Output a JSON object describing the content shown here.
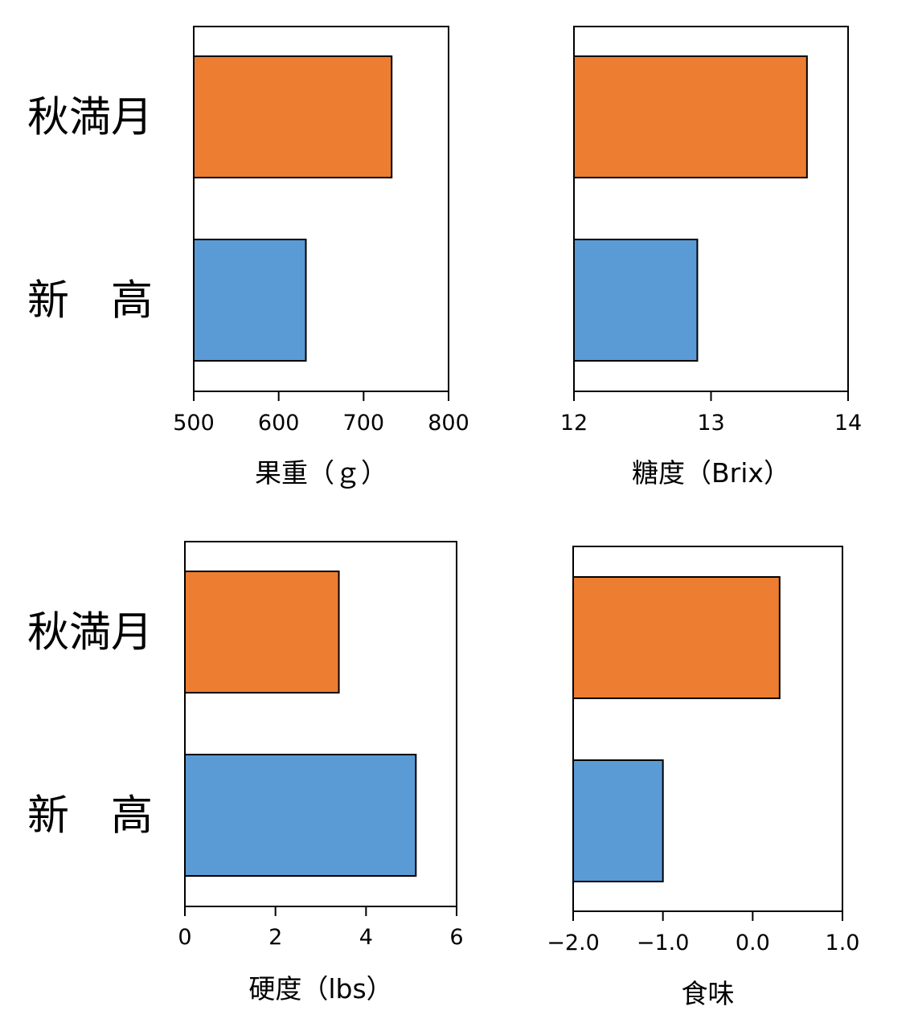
{
  "chart_data": [
    {
      "type": "bar",
      "orientation": "horizontal",
      "categories": [
        "秋満月",
        "新　高"
      ],
      "values": [
        733,
        632
      ],
      "xlabel": "果重（ｇ）",
      "xlim": [
        500,
        800
      ],
      "ticks": [
        500,
        600,
        700,
        800
      ],
      "tick_labels": [
        "500",
        "600",
        "700",
        "800"
      ]
    },
    {
      "type": "bar",
      "orientation": "horizontal",
      "categories": [
        "秋満月",
        "新　高"
      ],
      "values": [
        13.7,
        12.9
      ],
      "xlabel": "糖度（Brix）",
      "xlim": [
        12,
        14
      ],
      "ticks": [
        12,
        13,
        14
      ],
      "tick_labels": [
        "12",
        "13",
        "14"
      ]
    },
    {
      "type": "bar",
      "orientation": "horizontal",
      "categories": [
        "秋満月",
        "新　高"
      ],
      "values": [
        3.4,
        5.1
      ],
      "xlabel": "硬度（lbs）",
      "xlim": [
        0,
        6
      ],
      "ticks": [
        0,
        2,
        4,
        6
      ],
      "tick_labels": [
        "0",
        "2",
        "4",
        "6"
      ]
    },
    {
      "type": "bar",
      "orientation": "horizontal",
      "categories": [
        "秋満月",
        "新　高"
      ],
      "values": [
        0.3,
        -1.0
      ],
      "xlabel": "食味",
      "xlim": [
        -2.0,
        1.0
      ],
      "ticks": [
        -2.0,
        -1.0,
        0.0,
        1.0
      ],
      "tick_labels": [
        "−2.0",
        "−1.0",
        "0.0",
        "1.0"
      ]
    }
  ],
  "colors": {
    "秋満月": "#ED7D31",
    "新　高": "#5B9BD5",
    "bar_outline": "#000000",
    "axis": "#000000"
  },
  "grid": false,
  "legend": "none"
}
